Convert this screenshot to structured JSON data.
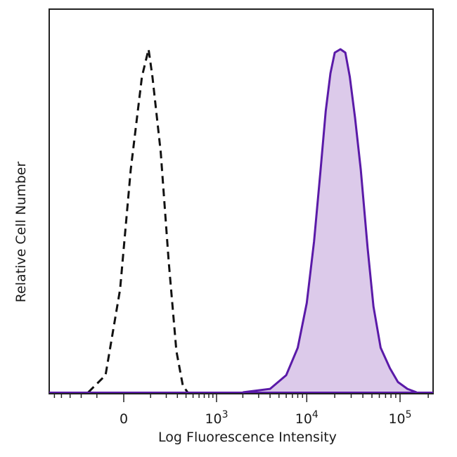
{
  "chart_data": {
    "type": "area",
    "title": "",
    "xlabel": "Log Fluorescence Intensity",
    "ylabel": "Relative Cell Number",
    "x_scale": "biexponential (log)",
    "x_ticks": [
      {
        "value": 0,
        "base": "0",
        "exp": ""
      },
      {
        "value": 1000,
        "base": "10",
        "exp": "3"
      },
      {
        "value": 10000,
        "base": "10",
        "exp": "4"
      },
      {
        "value": 100000,
        "base": "10",
        "exp": "5"
      }
    ],
    "y_ticks_visible": false,
    "grid": false,
    "legend": "none",
    "series": [
      {
        "style": "dashed black outline (control)",
        "color": "#111111",
        "fill": "none",
        "points": [
          [
            -150,
            0
          ],
          [
            -60,
            0.05
          ],
          [
            -10,
            0.3
          ],
          [
            20,
            0.65
          ],
          [
            60,
            0.92
          ],
          [
            90,
            1.0
          ],
          [
            110,
            0.92
          ],
          [
            160,
            0.7
          ],
          [
            220,
            0.38
          ],
          [
            290,
            0.12
          ],
          [
            360,
            0.02
          ],
          [
            420,
            0
          ]
        ]
      },
      {
        "style": "filled purple (stained)",
        "color": "#5a1aa8",
        "fill": "#dccaea",
        "points": [
          [
            2000,
            0
          ],
          [
            4000,
            0.01
          ],
          [
            6000,
            0.05
          ],
          [
            8000,
            0.13
          ],
          [
            10000,
            0.26
          ],
          [
            12000,
            0.44
          ],
          [
            14000,
            0.64
          ],
          [
            16000,
            0.82
          ],
          [
            18000,
            0.93
          ],
          [
            20000,
            0.99
          ],
          [
            23000,
            1.0
          ],
          [
            26000,
            0.99
          ],
          [
            29000,
            0.92
          ],
          [
            33000,
            0.8
          ],
          [
            38000,
            0.65
          ],
          [
            45000,
            0.42
          ],
          [
            52000,
            0.25
          ],
          [
            62000,
            0.13
          ],
          [
            78000,
            0.07
          ],
          [
            95000,
            0.03
          ],
          [
            120000,
            0.01
          ],
          [
            150000,
            0
          ]
        ]
      }
    ]
  }
}
